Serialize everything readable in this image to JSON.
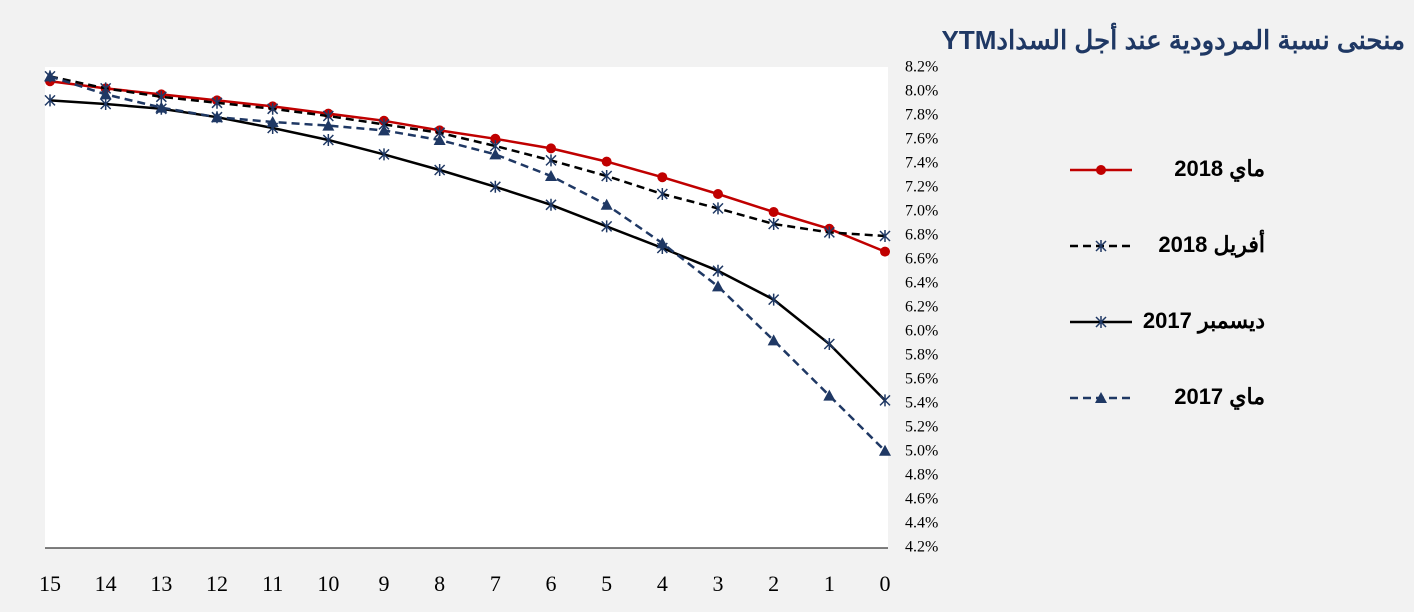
{
  "chart_data": {
    "type": "line",
    "title": "منحنى نسبة المردودية عند أجل السدادYTM",
    "x": [
      15,
      14,
      13,
      12,
      11,
      10,
      9,
      8,
      7,
      6,
      5,
      4,
      3,
      2,
      1,
      0
    ],
    "xlim": [
      15,
      0
    ],
    "xticks": [
      15,
      14,
      13,
      12,
      11,
      10,
      9,
      8,
      7,
      6,
      5,
      4,
      3,
      2,
      1,
      0
    ],
    "ylim": [
      4.2,
      8.2
    ],
    "yticks": [
      {
        "value": 4.2,
        "label": "4.2%"
      },
      {
        "value": 4.4,
        "label": "4.4%"
      },
      {
        "value": 4.6,
        "label": "4.6%"
      },
      {
        "value": 4.8,
        "label": "4.8%"
      },
      {
        "value": 5.0,
        "label": "5.0%"
      },
      {
        "value": 5.2,
        "label": "5.2%"
      },
      {
        "value": 5.4,
        "label": "5.4%"
      },
      {
        "value": 5.6,
        "label": "5.6%"
      },
      {
        "value": 5.8,
        "label": "5.8%"
      },
      {
        "value": 6.0,
        "label": "6.0%"
      },
      {
        "value": 6.2,
        "label": "6.2%"
      },
      {
        "value": 6.4,
        "label": "6.4%"
      },
      {
        "value": 6.6,
        "label": "6.6%"
      },
      {
        "value": 6.8,
        "label": "6.8%"
      },
      {
        "value": 7.0,
        "label": "7.0%"
      },
      {
        "value": 7.2,
        "label": "7.2%"
      },
      {
        "value": 7.4,
        "label": "7.4%"
      },
      {
        "value": 7.6,
        "label": "7.6%"
      },
      {
        "value": 7.8,
        "label": "7.8%"
      },
      {
        "value": 8.0,
        "label": "8.0%"
      },
      {
        "value": 8.2,
        "label": "8.2%"
      }
    ],
    "legend": "right",
    "series": [
      {
        "name": "ماي 2018",
        "color": "#c00000",
        "marker": "circle",
        "dash": false,
        "values": [
          8.09,
          8.03,
          7.98,
          7.93,
          7.88,
          7.82,
          7.76,
          7.68,
          7.61,
          7.53,
          7.42,
          7.29,
          7.15,
          7.0,
          6.86,
          6.67
        ]
      },
      {
        "name": "أفريل 2018",
        "color": "#000000",
        "marker": "star",
        "dash": true,
        "values": [
          8.13,
          8.03,
          7.96,
          7.91,
          7.86,
          7.8,
          7.73,
          7.66,
          7.55,
          7.43,
          7.3,
          7.15,
          7.03,
          6.9,
          6.83,
          6.8
        ]
      },
      {
        "name": "ديسمبر 2017",
        "color": "#000000",
        "marker": "star",
        "dash": false,
        "values": [
          7.93,
          7.9,
          7.86,
          7.79,
          7.7,
          7.6,
          7.48,
          7.35,
          7.21,
          7.06,
          6.88,
          6.7,
          6.51,
          6.27,
          5.9,
          5.43
        ]
      },
      {
        "name": "ماي 2017",
        "color": "#1f3864",
        "marker": "triangle",
        "dash": true,
        "values": [
          8.13,
          7.98,
          7.87,
          7.79,
          7.75,
          7.72,
          7.68,
          7.6,
          7.48,
          7.3,
          7.06,
          6.74,
          6.38,
          5.93,
          5.47,
          5.01
        ]
      }
    ]
  }
}
